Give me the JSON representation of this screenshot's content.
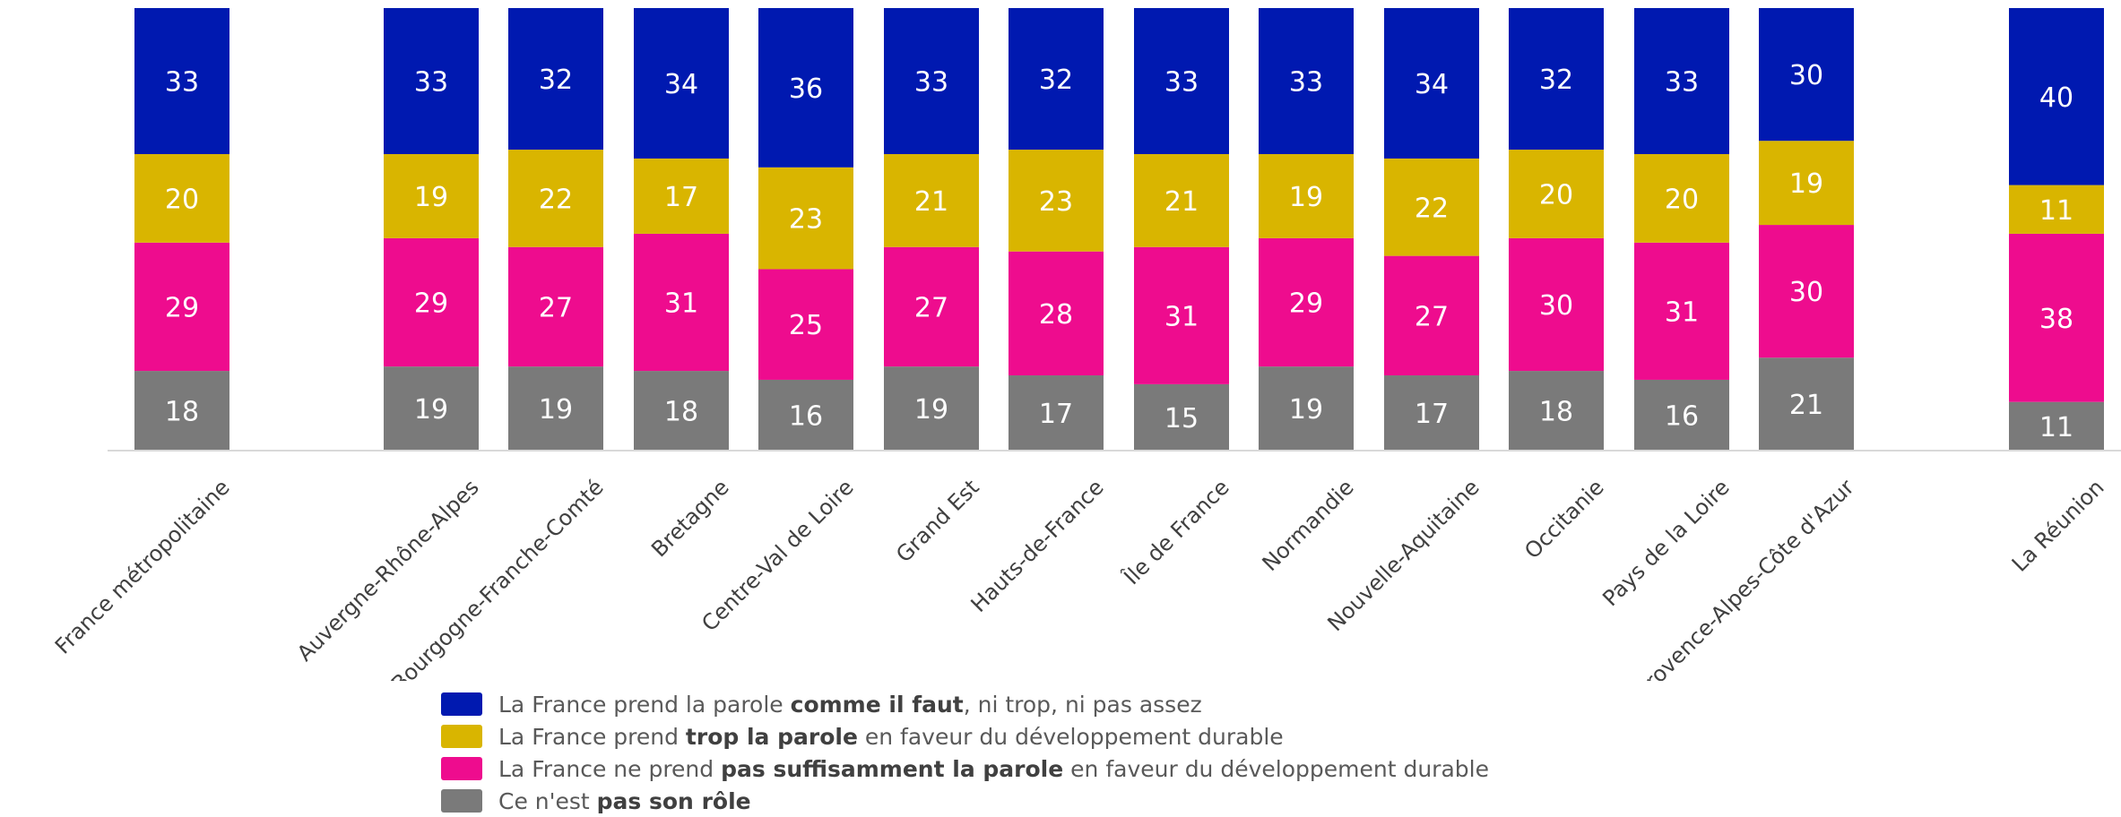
{
  "chart_data": {
    "type": "bar",
    "stacked": true,
    "categories": [
      "France métropolitaine",
      "Auvergne-Rhône-Alpes",
      "Bourgogne-Franche-Comté",
      "Bretagne",
      "Centre-Val de Loire",
      "Grand Est",
      "Hauts-de-France",
      "Île de France",
      "Normandie",
      "Nouvelle-Aquitaine",
      "Occitanie",
      "Pays de la Loire",
      "Provence-Alpes-Côte d'Azur",
      "La Réunion"
    ],
    "series": [
      {
        "name": "Ce n'est pas son rôle",
        "color": "#7a7a7a",
        "values": [
          18,
          19,
          19,
          18,
          16,
          19,
          17,
          15,
          19,
          17,
          18,
          16,
          21,
          11
        ]
      },
      {
        "name": "La France ne prend pas suffisamment la parole en faveur du développement durable",
        "color": "#ee0c8e",
        "values": [
          29,
          29,
          27,
          31,
          25,
          27,
          28,
          31,
          29,
          27,
          30,
          31,
          30,
          38
        ]
      },
      {
        "name": "La France prend trop la parole en faveur du développement durable",
        "color": "#d9b500",
        "values": [
          20,
          19,
          22,
          17,
          23,
          21,
          23,
          21,
          19,
          22,
          20,
          20,
          19,
          11
        ]
      },
      {
        "name": "La France prend la parole comme il faut, ni trop, ni pas assez",
        "color": "#0019b0",
        "values": [
          33,
          33,
          32,
          34,
          36,
          33,
          32,
          33,
          33,
          34,
          32,
          33,
          30,
          40
        ]
      }
    ],
    "legend_position": "bottom",
    "grid": false,
    "data_labels": true,
    "label_color": "#ffffff"
  },
  "legend": [
    {
      "color": "#0019b0",
      "pre": "La France prend la parole ",
      "bold": "comme il faut",
      "post": ", ni trop, ni pas assez"
    },
    {
      "color": "#d9b500",
      "pre": "La France prend ",
      "bold": "trop la parole",
      "post": " en faveur du développement durable"
    },
    {
      "color": "#ee0c8e",
      "pre": "La France ne prend ",
      "bold": "pas suffisamment la parole",
      "post": " en faveur du développement durable"
    },
    {
      "color": "#7a7a7a",
      "pre": "Ce n'est ",
      "bold": "pas son rôle",
      "post": ""
    }
  ]
}
